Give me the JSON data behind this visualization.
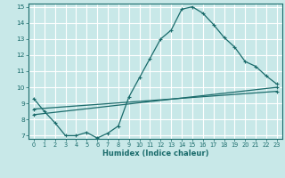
{
  "xlabel": "Humidex (Indice chaleur)",
  "xlim": [
    -0.5,
    23.5
  ],
  "ylim": [
    6.8,
    15.2
  ],
  "xticks": [
    0,
    1,
    2,
    3,
    4,
    5,
    6,
    7,
    8,
    9,
    10,
    11,
    12,
    13,
    14,
    15,
    16,
    17,
    18,
    19,
    20,
    21,
    22,
    23
  ],
  "yticks": [
    7,
    8,
    9,
    10,
    11,
    12,
    13,
    14,
    15
  ],
  "background_color": "#c8e8e8",
  "grid_color": "#ffffff",
  "line_color": "#1a6b6b",
  "line1_x": [
    0,
    1,
    2,
    3,
    4,
    5,
    6,
    7,
    8,
    9,
    10,
    11,
    12,
    13,
    14,
    15,
    16,
    17,
    18,
    19,
    20,
    21,
    22,
    23
  ],
  "line1_y": [
    9.3,
    8.5,
    7.8,
    7.0,
    7.0,
    7.2,
    6.85,
    7.15,
    7.6,
    9.4,
    10.6,
    11.8,
    13.0,
    13.55,
    14.85,
    15.0,
    14.6,
    13.9,
    13.1,
    12.5,
    11.6,
    11.3,
    10.7,
    10.2
  ],
  "line2_x": [
    0,
    23
  ],
  "line2_y": [
    8.3,
    10.0
  ],
  "line3_x": [
    0,
    23
  ],
  "line3_y": [
    8.65,
    9.75
  ],
  "xlabel_fontsize": 6,
  "tick_fontsize": 4.8
}
